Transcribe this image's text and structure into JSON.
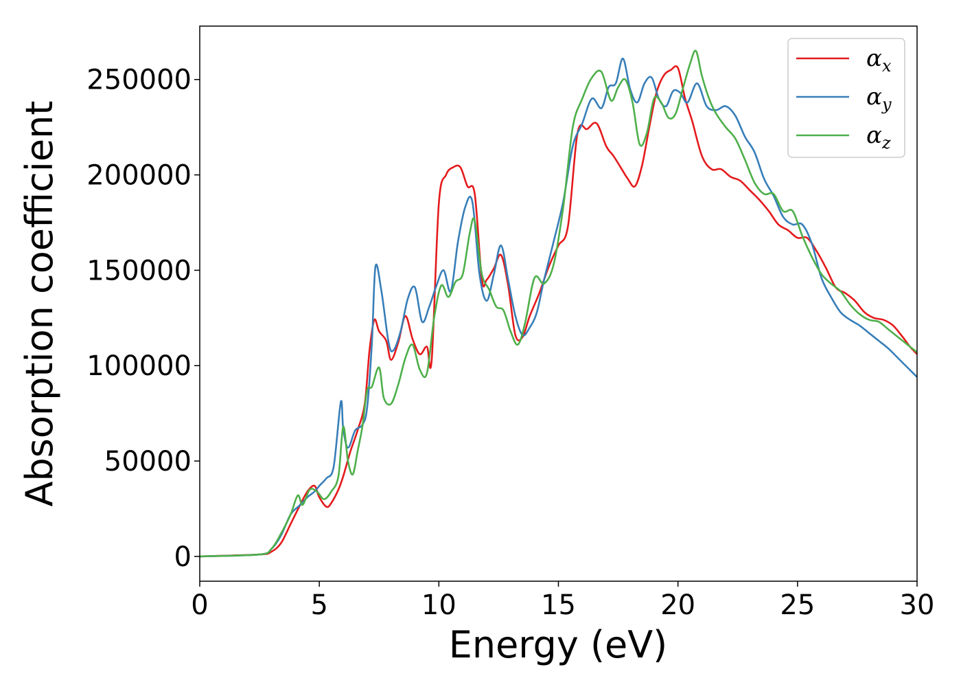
{
  "chart_data": {
    "type": "line",
    "xlabel": "Energy (eV)",
    "ylabel": "Absorption coefficient",
    "xlim": [
      0,
      30
    ],
    "ylim": [
      -13000,
      278000
    ],
    "xticks": [
      0,
      5,
      10,
      15,
      20,
      25,
      30
    ],
    "yticks": [
      0,
      50000,
      100000,
      150000,
      200000,
      250000
    ],
    "grid": false,
    "legend_position": "top-right",
    "series": [
      {
        "name": "α",
        "subscript": "x",
        "color": "#e41a1c",
        "x": [
          0,
          2.5,
          3.0,
          3.4,
          3.8,
          4.2,
          4.5,
          4.8,
          5.0,
          5.3,
          5.5,
          5.8,
          6.0,
          6.3,
          6.6,
          6.9,
          7.1,
          7.3,
          7.5,
          7.8,
          8.0,
          8.3,
          8.6,
          8.9,
          9.2,
          9.5,
          9.7,
          10.0,
          10.3,
          10.6,
          10.9,
          11.2,
          11.5,
          11.8,
          12.0,
          12.3,
          12.6,
          12.9,
          13.2,
          13.5,
          13.8,
          14.2,
          14.6,
          15.0,
          15.4,
          15.8,
          16.2,
          16.6,
          17.0,
          17.3,
          17.6,
          17.9,
          18.2,
          18.5,
          18.8,
          19.1,
          19.4,
          19.7,
          20.0,
          20.3,
          20.6,
          21.0,
          21.4,
          21.8,
          22.2,
          22.6,
          23.0,
          23.4,
          23.8,
          24.2,
          24.6,
          25.0,
          25.4,
          25.8,
          26.2,
          26.6,
          27.0,
          27.4,
          27.8,
          28.2,
          28.6,
          29.0,
          29.4,
          29.7,
          30.0
        ],
        "values": [
          0,
          1000,
          2500,
          7000,
          17000,
          27000,
          34000,
          37000,
          31000,
          26000,
          28000,
          35000,
          42000,
          55000,
          66000,
          80000,
          108000,
          124000,
          118000,
          113000,
          103000,
          112000,
          126000,
          114000,
          106000,
          110000,
          103000,
          185000,
          200000,
          204000,
          204000,
          194000,
          190000,
          145000,
          145000,
          151000,
          158000,
          142000,
          116000,
          115000,
          126000,
          138000,
          152000,
          163000,
          173000,
          222000,
          224000,
          227000,
          215000,
          210000,
          204000,
          198000,
          194000,
          205000,
          225000,
          243000,
          252000,
          255000,
          256000,
          240000,
          228000,
          210000,
          203000,
          203000,
          199000,
          197000,
          192000,
          187000,
          181000,
          174000,
          171000,
          167000,
          167000,
          160000,
          151000,
          141000,
          138000,
          134000,
          128000,
          125000,
          124000,
          121000,
          115000,
          110000,
          106000
        ]
      },
      {
        "name": "α",
        "subscript": "y",
        "color": "#377eb8",
        "x": [
          0,
          2.5,
          3.0,
          3.4,
          3.8,
          4.2,
          4.5,
          4.8,
          5.0,
          5.3,
          5.6,
          5.9,
          6.0,
          6.2,
          6.5,
          6.8,
          7.0,
          7.2,
          7.35,
          7.6,
          7.9,
          8.1,
          8.4,
          8.7,
          9.0,
          9.3,
          9.6,
          9.9,
          10.2,
          10.5,
          10.8,
          11.1,
          11.4,
          11.7,
          12.0,
          12.3,
          12.6,
          12.9,
          13.2,
          13.5,
          13.8,
          14.1,
          14.4,
          14.8,
          15.2,
          15.6,
          16.0,
          16.4,
          16.8,
          17.1,
          17.4,
          17.7,
          18.0,
          18.3,
          18.6,
          18.9,
          19.2,
          19.5,
          19.8,
          20.1,
          20.4,
          20.8,
          21.2,
          21.6,
          22.0,
          22.4,
          22.8,
          23.2,
          23.6,
          24.0,
          24.4,
          24.8,
          25.2,
          25.6,
          26.0,
          26.4,
          26.8,
          27.2,
          27.6,
          28.0,
          28.4,
          28.8,
          29.2,
          29.6,
          30.0
        ],
        "values": [
          0,
          1000,
          4000,
          11000,
          22000,
          27000,
          31000,
          34000,
          37000,
          41000,
          47000,
          81000,
          67000,
          57000,
          66000,
          69000,
          78000,
          112000,
          152000,
          139000,
          112000,
          108000,
          118000,
          135000,
          141000,
          123000,
          131000,
          142000,
          150000,
          139000,
          165000,
          183000,
          186000,
          148000,
          134000,
          148000,
          163000,
          145000,
          126000,
          116000,
          120000,
          128000,
          145000,
          165000,
          186000,
          215000,
          227000,
          240000,
          235000,
          246000,
          248000,
          261000,
          245000,
          238000,
          248000,
          251000,
          240000,
          236000,
          244000,
          243000,
          238000,
          248000,
          236000,
          234000,
          236000,
          231000,
          220000,
          212000,
          198000,
          189000,
          178000,
          174000,
          174000,
          164000,
          146000,
          136000,
          128000,
          124000,
          121000,
          117000,
          113000,
          109000,
          104000,
          99000,
          94000
        ]
      },
      {
        "name": "α",
        "subscript": "z",
        "color": "#4daf4a",
        "x": [
          0,
          2.5,
          3.0,
          3.4,
          3.8,
          4.1,
          4.3,
          4.6,
          4.9,
          5.2,
          5.5,
          5.8,
          6.0,
          6.2,
          6.4,
          6.6,
          6.8,
          7.0,
          7.2,
          7.5,
          7.7,
          8.0,
          8.3,
          8.6,
          8.9,
          9.2,
          9.5,
          9.8,
          10.1,
          10.4,
          10.7,
          11.0,
          11.3,
          11.5,
          11.8,
          12.1,
          12.4,
          12.7,
          13.0,
          13.3,
          13.6,
          14.0,
          14.4,
          14.8,
          15.2,
          15.6,
          16.0,
          16.4,
          16.8,
          17.2,
          17.5,
          17.8,
          18.1,
          18.4,
          18.7,
          19.0,
          19.3,
          19.6,
          19.9,
          20.2,
          20.5,
          20.75,
          21.0,
          21.3,
          21.6,
          22.0,
          22.4,
          22.8,
          23.2,
          23.6,
          24.0,
          24.4,
          24.8,
          25.2,
          25.6,
          26.0,
          26.4,
          26.8,
          27.2,
          27.6,
          28.0,
          28.4,
          28.8,
          29.2,
          29.6,
          30.0
        ],
        "values": [
          0,
          1000,
          4000,
          12000,
          22000,
          32000,
          27000,
          35000,
          34000,
          30000,
          34000,
          42000,
          68000,
          50000,
          43000,
          55000,
          68000,
          87000,
          89000,
          99000,
          83000,
          80000,
          90000,
          104000,
          111000,
          98000,
          96000,
          125000,
          142000,
          136000,
          144000,
          148000,
          170000,
          176000,
          148000,
          140000,
          131000,
          129000,
          118000,
          111000,
          122000,
          146000,
          143000,
          153000,
          183000,
          225000,
          240000,
          251000,
          254000,
          239000,
          246000,
          250000,
          238000,
          216000,
          222000,
          240000,
          238000,
          230000,
          232000,
          245000,
          258000,
          265000,
          252000,
          240000,
          232000,
          225000,
          219000,
          208000,
          196000,
          190000,
          190000,
          181000,
          181000,
          168000,
          157000,
          148000,
          143000,
          139000,
          132000,
          127000,
          124000,
          123000,
          119000,
          115000,
          111000,
          107000
        ]
      }
    ]
  }
}
